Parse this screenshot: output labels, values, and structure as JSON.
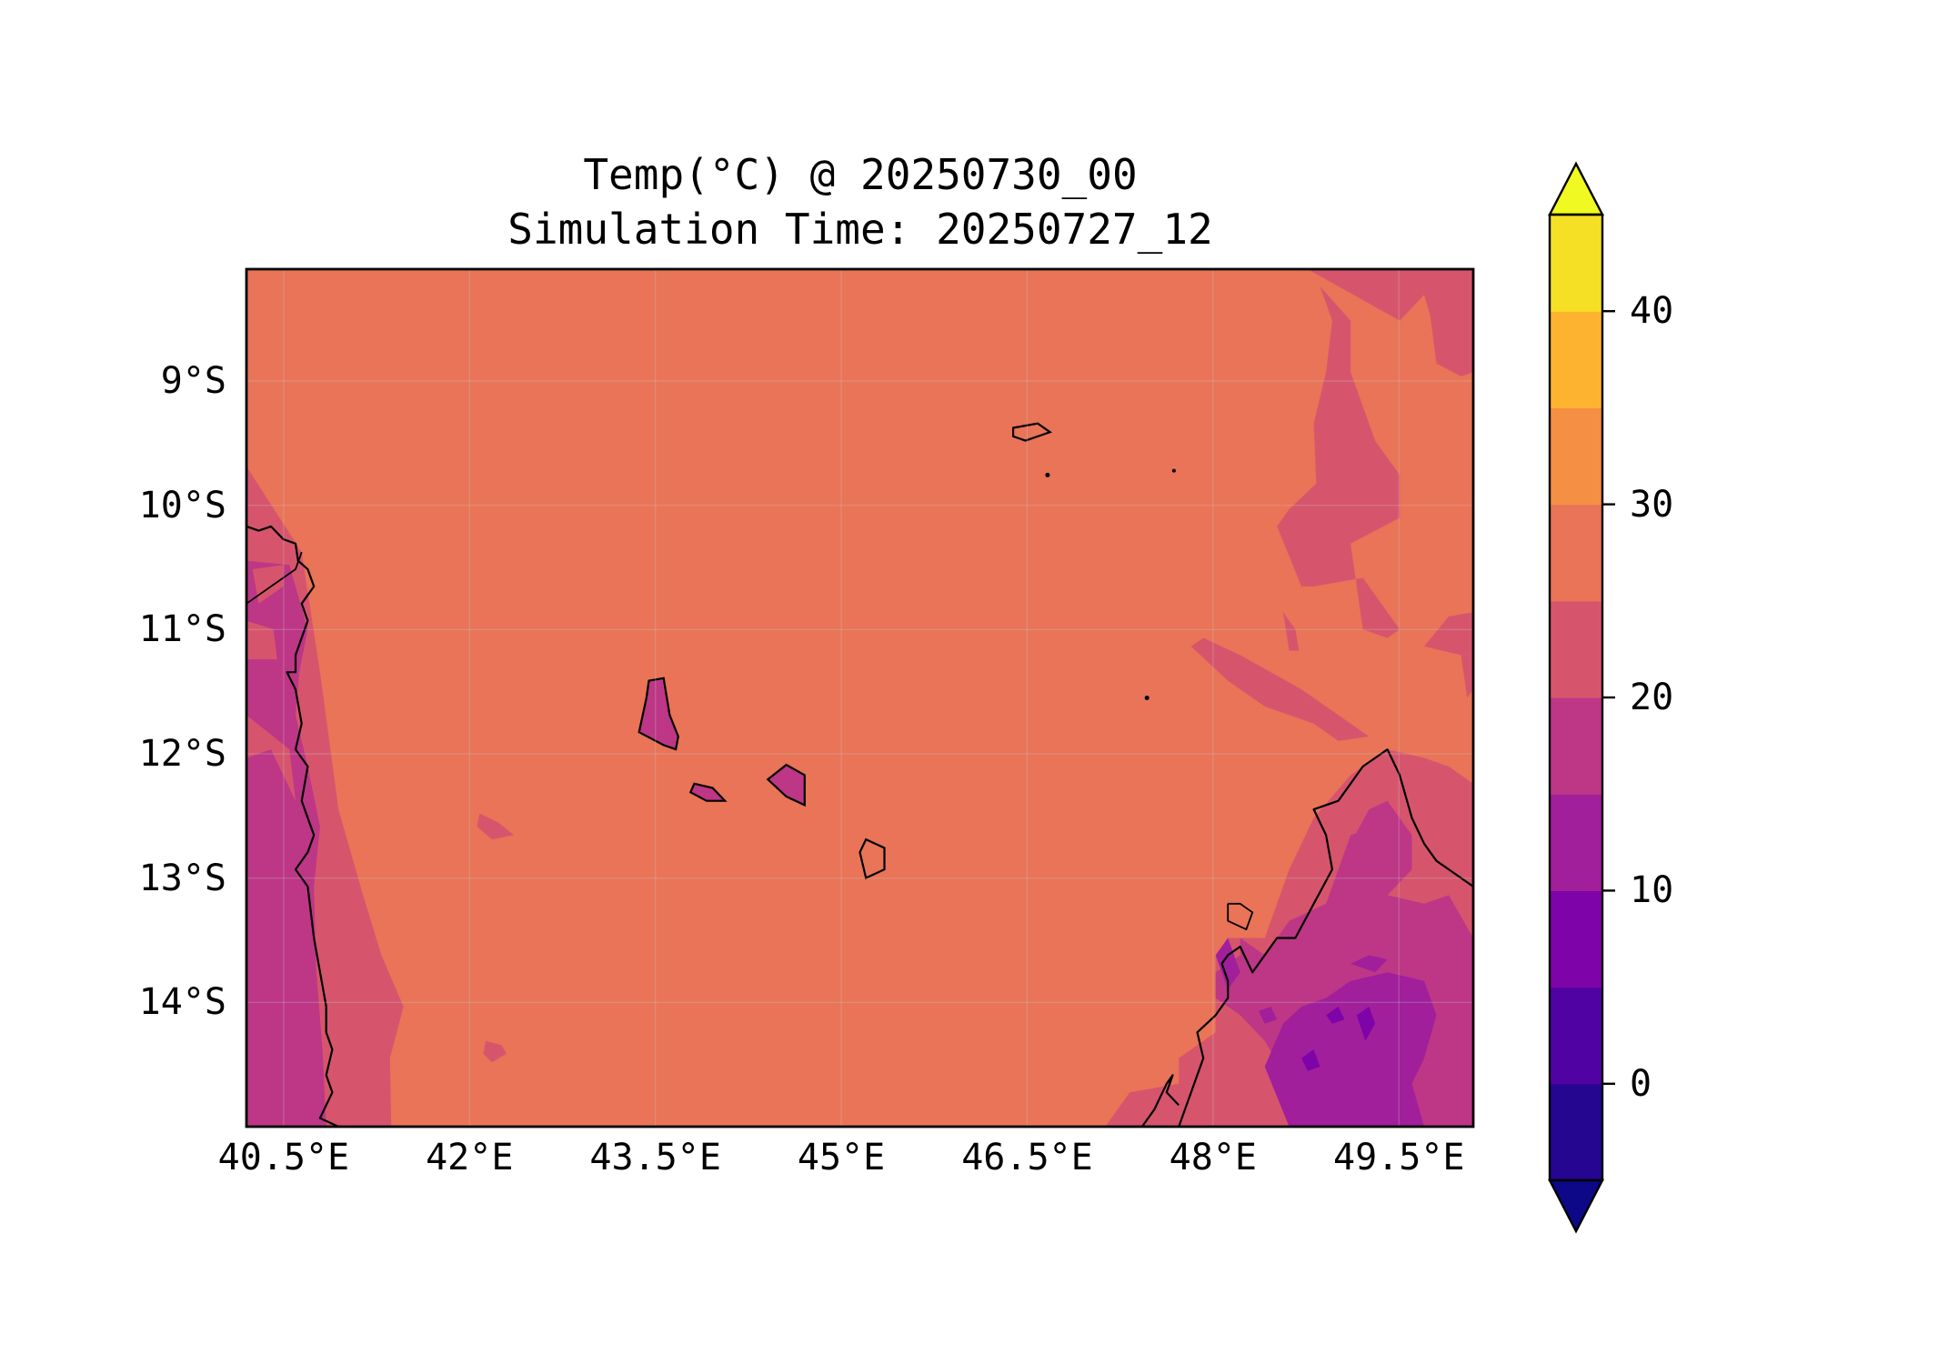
{
  "map": {
    "title": "Temp(°C) @ 20250730_00",
    "subtitle": "Simulation Time: 20250727_12",
    "variable": "Temp",
    "units": "°C",
    "valid_time": "20250730_00",
    "simulation_time": "20250727_12",
    "extent": {
      "lon_min": 40.2,
      "lon_max": 50.1,
      "lat_min": -15.0,
      "lat_max": -8.1
    },
    "lat_ticks": [
      "9°S",
      "10°S",
      "11°S",
      "12°S",
      "13°S",
      "14°S"
    ],
    "lat_tick_values": [
      -9,
      -10,
      -11,
      -12,
      -13,
      -14
    ],
    "lon_ticks": [
      "40.5°E",
      "42°E",
      "43.5°E",
      "45°E",
      "46.5°E",
      "48°E",
      "49.5°E"
    ],
    "lon_tick_values": [
      40.5,
      42,
      43.5,
      45,
      46.5,
      48,
      49.5
    ],
    "features": [
      "coastline-east-africa",
      "coastline-madagascar-north",
      "comoros-grande-comore",
      "comoros-moheli",
      "comoros-anjouan",
      "mayotte",
      "aldabra-atoll"
    ],
    "colors": {
      "ocean_28": "#e97457",
      "band_23": "#d6556d",
      "band_18": "#bd3786",
      "band_13": "#a11f9b",
      "band_8": "#7e03a8",
      "frame": "#000000",
      "coastline": "#000000"
    }
  },
  "colorbar": {
    "colormap": "plasma",
    "extend": "both",
    "min": -5,
    "max": 45,
    "step": 5,
    "levels": [
      -5,
      0,
      5,
      10,
      15,
      20,
      25,
      30,
      35,
      40,
      45
    ],
    "tick_values": [
      0,
      10,
      20,
      30,
      40
    ],
    "tick_labels": [
      "0",
      "10",
      "20",
      "30",
      "40"
    ],
    "level_colors": [
      "#240691",
      "#5002a2",
      "#7e03a8",
      "#a11f9b",
      "#bd3786",
      "#d6556d",
      "#e97457",
      "#f58f44",
      "#fdb32f",
      "#f5e026"
    ],
    "under_color": "#0d0887",
    "over_color": "#f0f921"
  }
}
